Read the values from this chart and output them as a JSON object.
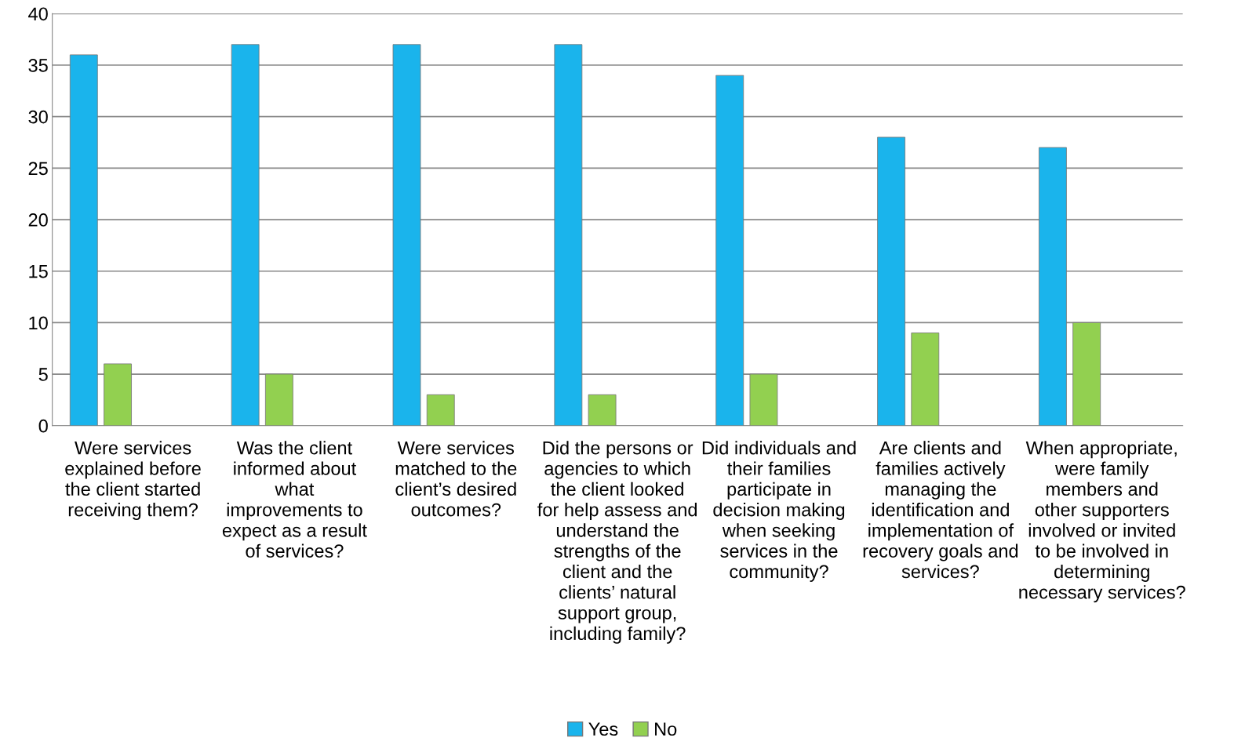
{
  "chart_data": {
    "type": "bar",
    "categories": [
      "Were services\nexplained before\nthe client started\nreceiving them?",
      "Was the client\ninformed about\nwhat\nimprovements to\nexpect as a result\nof services?",
      "Were services\nmatched to the\nclient’s desired\noutcomes?",
      "Did the persons or\nagencies to which\nthe client looked\nfor help assess and\nunderstand the\nstrengths of the\nclient and the\nclients’ natural\nsupport group,\nincluding family?",
      "Did individuals and\ntheir families\nparticipate in\ndecision making\nwhen seeking\nservices in the\ncommunity?",
      "Are clients and\nfamilies actively\nmanaging the\nidentification and\nimplementation of\nrecovery goals and\nservices?",
      "When appropriate,\nwere family\nmembers and\nother supporters\ninvolved or invited\nto be involved in\ndetermining\nnecessary services?"
    ],
    "series": [
      {
        "name": "Yes",
        "color": "#1ab4ec",
        "values": [
          36,
          37,
          37,
          37,
          34,
          28,
          27
        ]
      },
      {
        "name": "No",
        "color": "#92d050",
        "values": [
          6,
          5,
          3,
          3,
          5,
          9,
          10
        ]
      }
    ],
    "ylim": [
      0,
      40
    ],
    "yticks": [
      0,
      5,
      10,
      15,
      20,
      25,
      30,
      35,
      40
    ],
    "grid": "y",
    "legend": "bottom"
  }
}
